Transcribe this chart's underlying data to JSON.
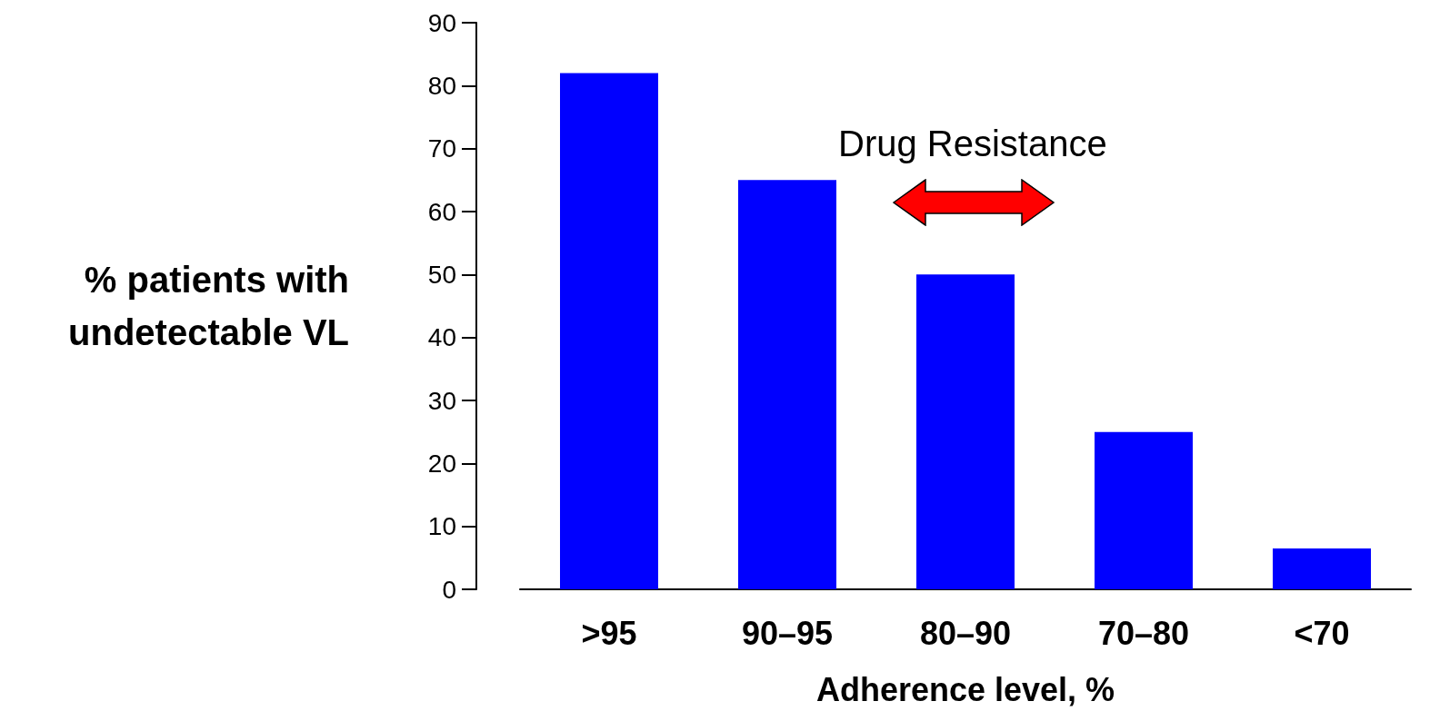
{
  "chart_data": {
    "type": "bar",
    "xlabel": "Adherence level, %",
    "ylabel": "% patients with\nundetectable VL",
    "categories": [
      ">95",
      "90–95",
      "80–90",
      "70–80",
      "<70"
    ],
    "values": [
      82,
      65,
      50,
      25,
      6.5
    ],
    "color": "#0000ff",
    "ylim": [
      0,
      90
    ],
    "yticks": [
      0,
      10,
      20,
      30,
      40,
      50,
      60,
      70,
      80,
      90
    ],
    "grid": false,
    "annotations": [
      "Drug Resistance"
    ]
  }
}
